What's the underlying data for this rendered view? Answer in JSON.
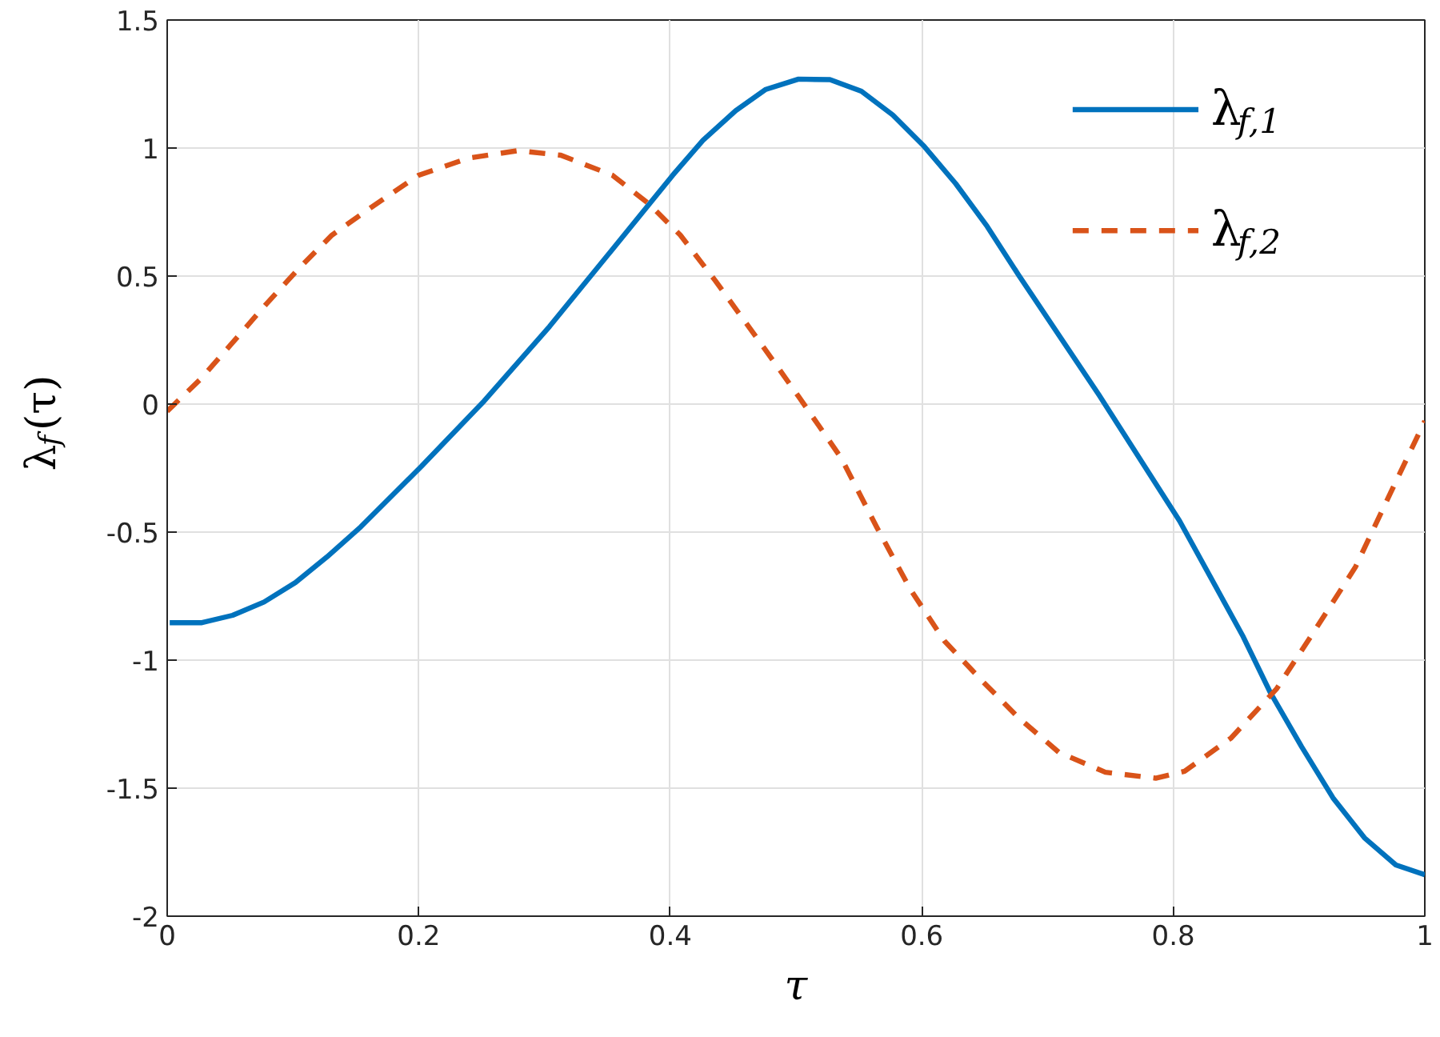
{
  "chart_data": {
    "type": "line",
    "xlabel": "τ",
    "ylabel": "λ$_{f}$(τ)",
    "xlim": [
      0,
      1
    ],
    "ylim": [
      -2,
      1.5
    ],
    "xticks": [
      0,
      0.2,
      0.4,
      0.6,
      0.8,
      1
    ],
    "yticks": [
      -2,
      -1.5,
      -1,
      -0.5,
      0,
      0.5,
      1,
      1.5
    ],
    "grid": true,
    "legend": "top right",
    "series": [
      {
        "name": "λ$_{f,1}$",
        "color": "#0072bd",
        "line_style": "solid",
        "x": [
          0.002,
          0.027,
          0.052,
          0.077,
          0.102,
          0.127,
          0.154,
          0.202,
          0.252,
          0.304,
          0.354,
          0.402,
          0.426,
          0.452,
          0.476,
          0.502,
          0.527,
          0.552,
          0.577,
          0.602,
          0.627,
          0.652,
          0.677,
          0.741,
          0.805,
          0.855,
          0.877,
          0.902,
          0.927,
          0.952,
          0.977,
          1.0
        ],
        "values": [
          -0.854,
          -0.854,
          -0.825,
          -0.773,
          -0.697,
          -0.597,
          -0.479,
          -0.244,
          0.012,
          0.303,
          0.604,
          0.894,
          1.03,
          1.146,
          1.229,
          1.269,
          1.267,
          1.222,
          1.129,
          1.006,
          0.861,
          0.694,
          0.504,
          0.035,
          -0.456,
          -0.903,
          -1.125,
          -1.338,
          -1.538,
          -1.694,
          -1.8,
          -1.838
        ]
      },
      {
        "name": "λ$_{f,2}$",
        "color": "#d95319",
        "line_style": "dashed",
        "x": [
          0.0,
          0.027,
          0.052,
          0.079,
          0.104,
          0.131,
          0.163,
          0.2,
          0.24,
          0.279,
          0.313,
          0.354,
          0.383,
          0.408,
          0.436,
          0.472,
          0.502,
          0.536,
          0.564,
          0.591,
          0.618,
          0.648,
          0.677,
          0.709,
          0.746,
          0.786,
          0.809,
          0.846,
          0.882,
          0.913,
          0.945,
          0.973,
          1.0
        ],
        "values": [
          -0.028,
          0.1,
          0.24,
          0.392,
          0.526,
          0.66,
          0.771,
          0.894,
          0.961,
          0.99,
          0.972,
          0.894,
          0.782,
          0.66,
          0.481,
          0.237,
          0.03,
          -0.211,
          -0.479,
          -0.724,
          -0.925,
          -1.081,
          -1.225,
          -1.36,
          -1.438,
          -1.461,
          -1.434,
          -1.304,
          -1.113,
          -0.88,
          -0.635,
          -0.344,
          -0.066
        ]
      }
    ]
  }
}
